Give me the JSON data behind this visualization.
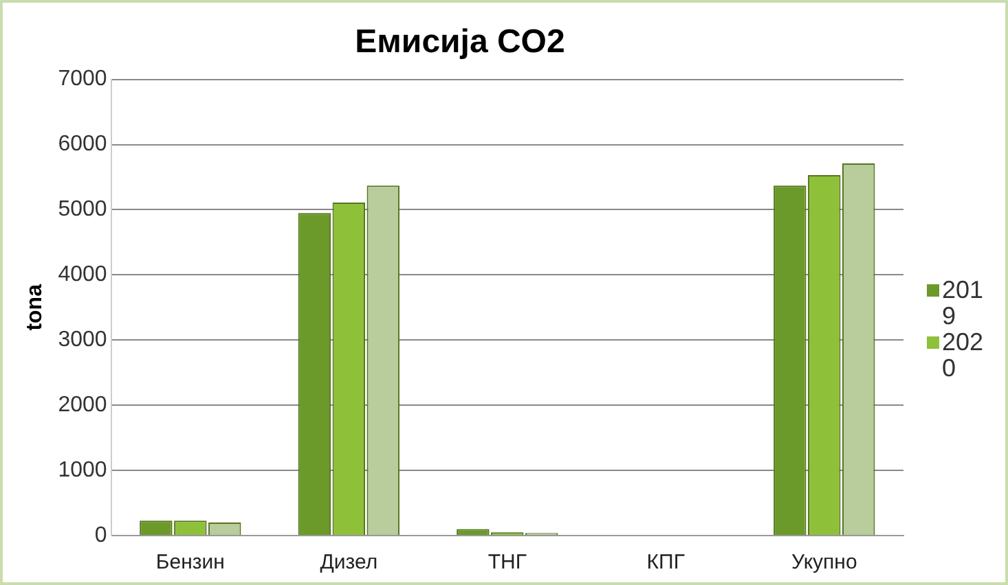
{
  "chart_data": {
    "type": "bar",
    "title": "Емисија CO2",
    "ylabel": "tona",
    "categories": [
      "Бензин",
      "Дизел",
      "ТНГ",
      "КПГ",
      "Укупно"
    ],
    "series": [
      {
        "name": "2019",
        "color": "#6b9a2a",
        "values": [
          230,
          4950,
          100,
          0,
          5370
        ]
      },
      {
        "name": "2020",
        "color": "#8fc03a",
        "values": [
          230,
          5110,
          50,
          0,
          5530
        ]
      },
      {
        "color": "#b8cc9c",
        "values": [
          200,
          5370,
          40,
          0,
          5710
        ]
      }
    ],
    "ylim": [
      0,
      7000
    ],
    "yticks": [
      0,
      1000,
      2000,
      3000,
      4000,
      5000,
      6000,
      7000
    ],
    "grid": "y",
    "legend": "right"
  }
}
